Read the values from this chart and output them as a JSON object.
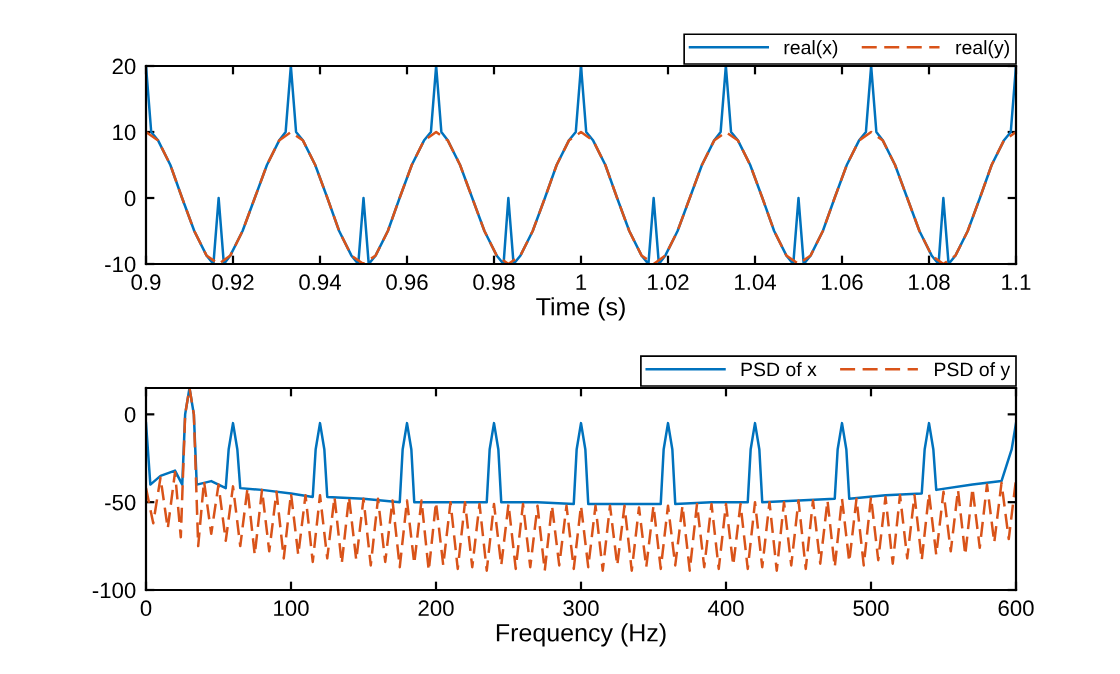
{
  "chart_data": [
    {
      "type": "line",
      "xlabel": "Time (s)",
      "xlim": [
        0.9,
        1.1
      ],
      "ylim": [
        -10,
        20
      ],
      "xticks": [
        0.9,
        0.92,
        0.94,
        0.96,
        0.98,
        1,
        1.02,
        1.04,
        1.06,
        1.08,
        1.1
      ],
      "yticks": [
        -10,
        0,
        10,
        20
      ],
      "legend": "top right",
      "grid": false,
      "series": [
        {
          "name": "real(x)",
          "color": "#0072bd",
          "line_style": "solid",
          "x": [
            0.9,
            0.9012,
            0.9028,
            0.9056,
            0.9083,
            0.9111,
            0.9139,
            0.9155,
            0.9167,
            0.9179,
            0.9194,
            0.9222,
            0.925,
            0.9278,
            0.9306,
            0.9321,
            0.9333,
            0.9345,
            0.9361,
            0.9389,
            0.9417,
            0.9444,
            0.9472,
            0.9488,
            0.95,
            0.9512,
            0.9528,
            0.9556,
            0.9583,
            0.9611,
            0.9639,
            0.9655,
            0.9667,
            0.9679,
            0.9694,
            0.9722,
            0.975,
            0.9778,
            0.9806,
            0.9822,
            0.9833,
            0.9845,
            0.9861,
            0.9889,
            0.9917,
            0.9944,
            0.9972,
            0.9988,
            1.0,
            1.0012,
            1.0028,
            1.0056,
            1.0083,
            1.0111,
            1.0139,
            1.0155,
            1.0167,
            1.0179,
            1.0194,
            1.0222,
            1.025,
            1.0278,
            1.0306,
            1.0321,
            1.0333,
            1.0345,
            1.0361,
            1.0389,
            1.0417,
            1.0444,
            1.0472,
            1.0488,
            1.05,
            1.0512,
            1.0528,
            1.0556,
            1.0583,
            1.0611,
            1.0639,
            1.0655,
            1.0667,
            1.0679,
            1.0694,
            1.0722,
            1.075,
            1.0778,
            1.0806,
            1.0822,
            1.0833,
            1.0845,
            1.0861,
            1.0889,
            1.0917,
            1.0944,
            1.0972,
            1.0988,
            1.1
          ],
          "values": [
            20,
            10,
            8.7,
            5,
            0,
            -5,
            -8.7,
            -10,
            0,
            -10,
            -8.7,
            -5,
            0,
            5,
            8.7,
            10,
            20,
            10,
            8.7,
            5,
            0,
            -5,
            -8.7,
            -10,
            0,
            -10,
            -8.7,
            -5,
            0,
            5,
            8.7,
            10,
            20,
            10,
            8.7,
            5,
            0,
            -5,
            -8.7,
            -10,
            0,
            -10,
            -8.7,
            -5,
            0,
            5,
            8.7,
            10,
            20,
            10,
            8.7,
            5,
            0,
            -5,
            -8.7,
            -10,
            0,
            -10,
            -8.7,
            -5,
            0,
            5,
            8.7,
            10,
            20,
            10,
            8.7,
            5,
            0,
            -5,
            -8.7,
            -10,
            0,
            -10,
            -8.7,
            -5,
            0,
            5,
            8.7,
            10,
            20,
            10,
            8.7,
            5,
            0,
            -5,
            -8.7,
            -10,
            0,
            -10,
            -8.7,
            -5,
            0,
            5,
            8.7,
            10,
            20
          ]
        },
        {
          "name": "real(y)",
          "color": "#d95319",
          "line_style": "dashed",
          "x": [
            0.9,
            0.9028,
            0.9056,
            0.9083,
            0.9111,
            0.9139,
            0.9167,
            0.9194,
            0.9222,
            0.925,
            0.9278,
            0.9306,
            0.9333,
            0.9361,
            0.9389,
            0.9417,
            0.9444,
            0.9472,
            0.95,
            0.9528,
            0.9556,
            0.9583,
            0.9611,
            0.9639,
            0.9667,
            0.9694,
            0.9722,
            0.975,
            0.9778,
            0.9806,
            0.9833,
            0.9861,
            0.9889,
            0.9917,
            0.9944,
            0.9972,
            1.0,
            1.0028,
            1.0056,
            1.0083,
            1.0111,
            1.0139,
            1.0167,
            1.0194,
            1.0222,
            1.025,
            1.0278,
            1.0306,
            1.0333,
            1.0361,
            1.0389,
            1.0417,
            1.0444,
            1.0472,
            1.05,
            1.0528,
            1.0556,
            1.0583,
            1.0611,
            1.0639,
            1.0667,
            1.0694,
            1.0722,
            1.075,
            1.0778,
            1.0806,
            1.0833,
            1.0861,
            1.0889,
            1.0917,
            1.0944,
            1.0972,
            1.1
          ],
          "values": [
            10,
            8.7,
            5,
            0,
            -5,
            -8.7,
            -10,
            -8.7,
            -5,
            0,
            5,
            8.7,
            10,
            8.7,
            5,
            0,
            -5,
            -8.7,
            -10,
            -8.7,
            -5,
            0,
            5,
            8.7,
            10,
            8.7,
            5,
            0,
            -5,
            -8.7,
            -10,
            -8.7,
            -5,
            0,
            5,
            8.7,
            10,
            8.7,
            5,
            0,
            -5,
            -8.7,
            -10,
            -8.7,
            -5,
            0,
            5,
            8.7,
            10,
            8.7,
            5,
            0,
            -5,
            -8.7,
            -10,
            -8.7,
            -5,
            0,
            5,
            8.7,
            10,
            8.7,
            5,
            0,
            -5,
            -8.7,
            -10,
            -8.7,
            -5,
            0,
            5,
            8.7,
            10
          ]
        }
      ]
    },
    {
      "type": "line",
      "xlabel": "Frequency (Hz)",
      "xlim": [
        0,
        600
      ],
      "ylim": [
        -100,
        15
      ],
      "xticks": [
        0,
        100,
        200,
        300,
        400,
        500,
        600
      ],
      "yticks": [
        -100,
        -50,
        0
      ],
      "legend": "top right",
      "grid": false,
      "series": [
        {
          "name": "PSD of x",
          "color": "#0072bd",
          "line_style": "solid",
          "x": [
            0,
            3,
            10,
            20,
            25,
            27,
            30,
            33,
            35,
            45,
            55,
            57,
            60,
            63,
            65,
            80,
            100,
            115,
            117,
            120,
            123,
            125,
            150,
            175,
            177,
            180,
            183,
            185,
            210,
            235,
            237,
            240,
            243,
            245,
            270,
            295,
            297,
            300,
            303,
            305,
            330,
            355,
            357,
            360,
            363,
            365,
            390,
            415,
            417,
            420,
            423,
            425,
            450,
            475,
            477,
            480,
            483,
            485,
            510,
            535,
            537,
            540,
            543,
            545,
            570,
            590,
            597,
            600
          ],
          "values": [
            -5,
            -40,
            -35,
            -32,
            -40,
            0,
            15,
            0,
            -40,
            -38,
            -42,
            -20,
            -5,
            -20,
            -42,
            -43,
            -45,
            -47,
            -20,
            -5,
            -20,
            -47,
            -48,
            -50,
            -20,
            -5,
            -20,
            -50,
            -50,
            -50,
            -20,
            -5,
            -20,
            -50,
            -50,
            -51,
            -20,
            -5,
            -20,
            -51,
            -51,
            -51,
            -20,
            -5,
            -20,
            -51,
            -50,
            -50,
            -20,
            -5,
            -20,
            -50,
            -49,
            -48,
            -20,
            -5,
            -20,
            -48,
            -46,
            -45,
            -20,
            -5,
            -20,
            -43,
            -40,
            -38,
            -20,
            -5
          ]
        },
        {
          "name": "PSD of y",
          "color": "#d95319",
          "line_style": "dashed",
          "x": [
            0,
            5,
            10,
            15,
            20,
            24,
            27,
            30,
            33,
            36,
            40,
            45,
            50,
            55,
            60,
            65,
            70,
            75,
            80,
            85,
            90,
            95,
            100,
            105,
            110,
            115,
            120,
            125,
            130,
            135,
            140,
            145,
            150,
            155,
            160,
            165,
            170,
            175,
            180,
            185,
            190,
            195,
            200,
            205,
            210,
            215,
            220,
            225,
            230,
            235,
            240,
            245,
            250,
            255,
            260,
            265,
            270,
            275,
            280,
            285,
            290,
            295,
            300,
            305,
            310,
            315,
            320,
            325,
            330,
            335,
            340,
            345,
            350,
            355,
            360,
            365,
            370,
            375,
            380,
            385,
            390,
            395,
            400,
            405,
            410,
            415,
            420,
            425,
            430,
            435,
            440,
            445,
            450,
            455,
            460,
            465,
            470,
            475,
            480,
            485,
            490,
            495,
            500,
            505,
            510,
            515,
            520,
            525,
            530,
            535,
            540,
            545,
            550,
            555,
            560,
            565,
            570,
            575,
            580,
            585,
            590,
            595,
            600
          ],
          "values": [
            -42,
            -62,
            -36,
            -65,
            -33,
            -70,
            0,
            15,
            0,
            -75,
            -38,
            -68,
            -40,
            -72,
            -41,
            -75,
            -42,
            -80,
            -43,
            -78,
            -44,
            -82,
            -45,
            -80,
            -46,
            -84,
            -46,
            -82,
            -47,
            -85,
            -47,
            -83,
            -48,
            -86,
            -48,
            -84,
            -49,
            -87,
            -49,
            -85,
            -49,
            -89,
            -50,
            -86,
            -50,
            -88,
            -50,
            -87,
            -51,
            -89,
            -51,
            -86,
            -51,
            -88,
            -51,
            -87,
            -52,
            -89,
            -52,
            -86,
            -52,
            -88,
            -52,
            -87,
            -52,
            -89,
            -52,
            -86,
            -52,
            -89,
            -53,
            -87,
            -52,
            -88,
            -52,
            -86,
            -52,
            -89,
            -51,
            -87,
            -51,
            -88,
            -51,
            -86,
            -51,
            -88,
            -50,
            -87,
            -50,
            -89,
            -50,
            -86,
            -49,
            -88,
            -49,
            -85,
            -49,
            -87,
            -48,
            -84,
            -48,
            -86,
            -47,
            -83,
            -47,
            -85,
            -46,
            -82,
            -46,
            -83,
            -45,
            -80,
            -44,
            -78,
            -43,
            -80,
            -42,
            -76,
            -40,
            -73,
            -39,
            -71,
            -37
          ]
        }
      ]
    }
  ]
}
